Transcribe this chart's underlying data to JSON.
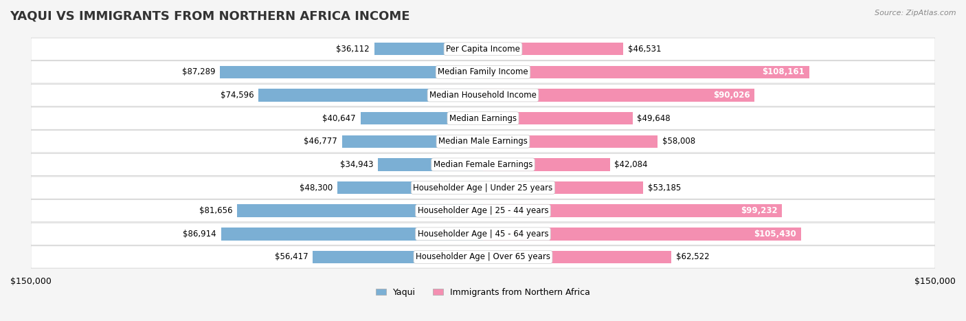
{
  "title": "YAQUI VS IMMIGRANTS FROM NORTHERN AFRICA INCOME",
  "source": "Source: ZipAtlas.com",
  "categories": [
    "Per Capita Income",
    "Median Family Income",
    "Median Household Income",
    "Median Earnings",
    "Median Male Earnings",
    "Median Female Earnings",
    "Householder Age | Under 25 years",
    "Householder Age | 25 - 44 years",
    "Householder Age | 45 - 64 years",
    "Householder Age | Over 65 years"
  ],
  "yaqui_values": [
    36112,
    87289,
    74596,
    40647,
    46777,
    34943,
    48300,
    81656,
    86914,
    56417
  ],
  "immigrant_values": [
    46531,
    108161,
    90026,
    49648,
    58008,
    42084,
    53185,
    99232,
    105430,
    62522
  ],
  "yaqui_color": "#7bafd4",
  "immigrant_color": "#f48fb1",
  "yaqui_label": "Yaqui",
  "immigrant_label": "Immigrants from Northern Africa",
  "max_value": 150000,
  "bg_color": "#f5f5f5",
  "row_bg_color": "#ffffff",
  "title_fontsize": 13,
  "label_fontsize": 8.5,
  "value_fontsize": 8.5,
  "bar_height": 0.55,
  "ylim_label": "$150,000"
}
